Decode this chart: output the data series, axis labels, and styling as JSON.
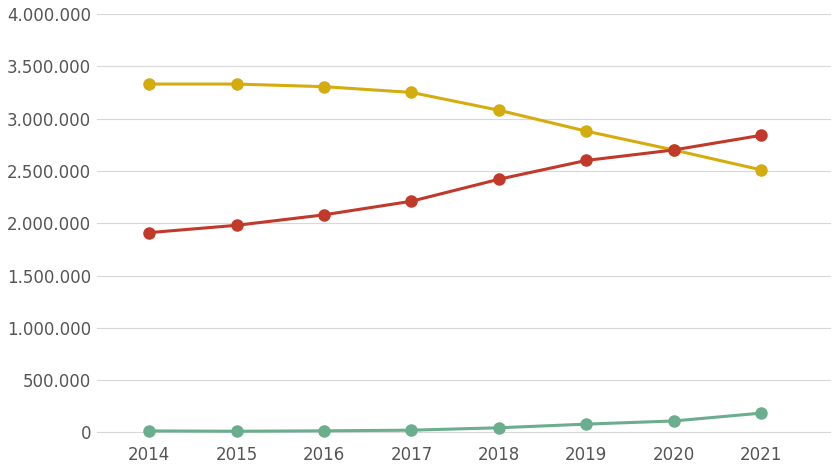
{
  "years": [
    2014,
    2015,
    2016,
    2017,
    2018,
    2019,
    2020,
    2021
  ],
  "diesel": [
    3330000,
    3330000,
    3305000,
    3250000,
    3080000,
    2880000,
    2700000,
    2510000
  ],
  "petrol": [
    1910000,
    1980000,
    2080000,
    2210000,
    2420000,
    2600000,
    2700000,
    2840000
  ],
  "green": [
    15000,
    12000,
    16000,
    22000,
    45000,
    80000,
    110000,
    185000
  ],
  "diesel_color": "#D4AC0D",
  "petrol_color": "#C0392B",
  "green_color": "#6BAE8E",
  "ylim": [
    -50000,
    4000000
  ],
  "yticks": [
    0,
    500000,
    1000000,
    1500000,
    2000000,
    2500000,
    3000000,
    3500000,
    4000000
  ],
  "background_color": "#ffffff",
  "grid_color": "#d8d8d8",
  "marker_size": 9,
  "line_width": 2.2,
  "tick_fontsize": 12,
  "tick_color": "#555555"
}
